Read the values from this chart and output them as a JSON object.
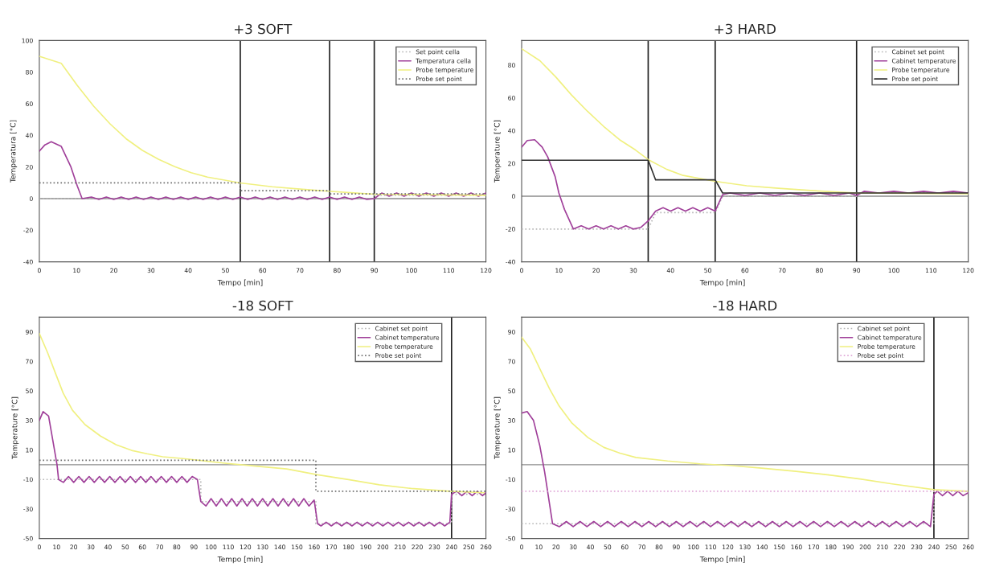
{
  "chart_data": [
    {
      "type": "line",
      "title": "+3 SOFT",
      "xlabel": "Tempo [min]",
      "ylabel": "Temperatura [°C]",
      "xlim": [
        0,
        120
      ],
      "xticks": [
        0,
        10,
        20,
        30,
        40,
        50,
        60,
        70,
        80,
        90,
        100,
        110,
        120
      ],
      "ylim": [
        -40,
        100
      ],
      "yticks": [
        -40,
        -20,
        0,
        20,
        40,
        60,
        80,
        100
      ],
      "grid": false,
      "legend": "top right",
      "series": [
        {
          "name": "Set point cella",
          "color": "#b8b8b8",
          "line_style": "dotted",
          "x": [
            0,
            90,
            90,
            120
          ],
          "values": [
            0,
            0,
            2,
            2
          ]
        },
        {
          "name": "Temperatura cella",
          "color": "#a0409a",
          "line_style": "solid",
          "x": [
            0,
            1.5,
            3.2,
            5.9,
            8.5,
            10.2,
            11.5,
            14,
            16,
            18,
            20,
            22,
            24,
            26,
            28,
            30,
            32,
            34,
            36,
            38,
            40,
            42,
            44,
            46,
            48,
            50,
            52,
            54,
            56,
            58,
            60,
            62,
            64,
            66,
            68,
            70,
            72,
            74,
            76,
            78,
            80,
            82,
            84,
            86,
            88,
            90,
            92,
            94,
            96,
            98,
            100,
            102,
            104,
            106,
            108,
            110,
            112,
            114,
            116,
            118,
            120
          ],
          "values": [
            30,
            34,
            36,
            33,
            20,
            8,
            0,
            1,
            -0.5,
            1,
            -0.5,
            1,
            -0.5,
            1,
            -0.5,
            1,
            -0.5,
            1,
            -0.5,
            1,
            -0.5,
            1,
            -0.5,
            1,
            -0.5,
            1,
            -0.5,
            1,
            -0.5,
            1,
            -0.5,
            1,
            -0.5,
            1,
            -0.5,
            1,
            -0.5,
            1,
            -0.5,
            1,
            -0.5,
            1,
            -0.5,
            1,
            -0.5,
            0,
            3.5,
            1.5,
            3.5,
            1.5,
            3.5,
            1.5,
            3.5,
            1.5,
            3.5,
            1.5,
            3.5,
            1.5,
            3.5,
            1.5,
            3.5
          ]
        },
        {
          "name": "Probe temperature",
          "color": "#f0f080",
          "line_style": "solid",
          "x": [
            0,
            5.9,
            10.2,
            14.6,
            19,
            23.3,
            27.7,
            32,
            36.4,
            40.8,
            45.2,
            49.5,
            54,
            62.6,
            71.4,
            77.6,
            84.5,
            90,
            120
          ],
          "values": [
            90,
            85.6,
            71.6,
            58.5,
            47.3,
            37.9,
            30.5,
            24.9,
            20.2,
            16.4,
            13.6,
            11.8,
            9.9,
            7.5,
            5.8,
            4.7,
            3.6,
            2.8,
            2.1
          ]
        },
        {
          "name": "Probe set point",
          "color": "#707070",
          "line_style": "dotted",
          "x": [
            0,
            54,
            54,
            78,
            78,
            120
          ],
          "values": [
            10,
            10,
            5,
            5,
            3,
            3
          ]
        }
      ],
      "ref_lines": [
        {
          "axis": "x",
          "value": 54,
          "color": "#202020"
        },
        {
          "axis": "x",
          "value": 78,
          "color": "#202020"
        },
        {
          "axis": "x",
          "value": 90,
          "color": "#202020"
        },
        {
          "axis": "y",
          "value": 0,
          "color": "#8c8c8c"
        }
      ]
    },
    {
      "type": "line",
      "title": "+3 HARD",
      "xlabel": "Tempo [min]",
      "ylabel": "Temperature [°C]",
      "xlim": [
        0,
        120
      ],
      "xticks": [
        0,
        10,
        20,
        30,
        40,
        50,
        60,
        70,
        80,
        90,
        100,
        110,
        120
      ],
      "ylim": [
        -40,
        95
      ],
      "yticks": [
        -40,
        -20,
        0,
        20,
        40,
        60,
        80
      ],
      "grid": false,
      "legend": "top right",
      "series": [
        {
          "name": "Cabinet set point",
          "color": "#b8b8b8",
          "line_style": "dotted",
          "x": [
            0,
            34,
            36,
            52,
            54,
            90,
            90,
            120
          ],
          "values": [
            -20,
            -20,
            -10,
            -10,
            0,
            0,
            2,
            2
          ]
        },
        {
          "name": "Cabinet temperature",
          "color": "#a0409a",
          "line_style": "solid",
          "x": [
            0,
            1.5,
            3.5,
            5.5,
            7,
            9,
            10,
            11.5,
            13.9,
            16,
            18,
            20,
            22,
            24,
            26,
            28,
            30,
            32,
            34,
            36,
            38,
            40,
            42,
            44,
            46,
            48,
            50,
            52,
            54,
            56,
            60,
            64,
            68,
            72,
            76,
            80,
            84,
            88,
            90,
            92,
            96,
            100,
            104,
            108,
            112,
            116,
            120
          ],
          "values": [
            30,
            34,
            34.5,
            30,
            24,
            12,
            2,
            -8,
            -20,
            -18,
            -20,
            -18,
            -20,
            -18,
            -20,
            -18,
            -20,
            -19,
            -15,
            -9,
            -7,
            -9,
            -7,
            -9,
            -7,
            -9,
            -7,
            -9,
            1,
            2,
            0.5,
            2,
            0.5,
            2,
            0.5,
            2,
            0.5,
            2,
            0.5,
            3,
            2,
            3,
            2,
            3,
            2,
            3,
            2
          ]
        },
        {
          "name": "Probe temperature",
          "color": "#f0f080",
          "line_style": "solid",
          "x": [
            0,
            4.9,
            9.2,
            13.4,
            17.7,
            22,
            26.3,
            30.6,
            34,
            39,
            43.4,
            52,
            60.5,
            69,
            77.7,
            90,
            120
          ],
          "values": [
            90,
            82.7,
            72.7,
            61.8,
            51.8,
            42.7,
            34.5,
            28.2,
            22.4,
            16.4,
            12.7,
            9.1,
            6.4,
            4.9,
            3.5,
            2,
            1.6
          ]
        },
        {
          "name": "Probe set point",
          "color": "#303030",
          "line_style": "solid",
          "x": [
            0,
            34,
            36,
            52,
            54,
            120
          ],
          "values": [
            22,
            22,
            10,
            10,
            2,
            2
          ]
        }
      ],
      "ref_lines": [
        {
          "axis": "x",
          "value": 34,
          "color": "#202020"
        },
        {
          "axis": "x",
          "value": 52,
          "color": "#202020"
        },
        {
          "axis": "x",
          "value": 90,
          "color": "#202020"
        },
        {
          "axis": "y",
          "value": 0,
          "color": "#8c8c8c"
        }
      ]
    },
    {
      "type": "line",
      "title": "-18 SOFT",
      "xlabel": "Tempo [min]",
      "ylabel": "Temperature [°C]",
      "xlim": [
        0,
        260
      ],
      "xticks": [
        0,
        10,
        20,
        30,
        40,
        50,
        60,
        70,
        80,
        90,
        100,
        110,
        120,
        130,
        140,
        150,
        160,
        170,
        180,
        190,
        200,
        210,
        220,
        230,
        240,
        250,
        260
      ],
      "ylim": [
        -50,
        100
      ],
      "yticks": [
        -50,
        -30,
        -10,
        10,
        30,
        50,
        70,
        90
      ],
      "grid": false,
      "legend": "top right",
      "series": [
        {
          "name": "Cabinet set point",
          "color": "#b8b8b8",
          "line_style": "dotted",
          "x": [
            0,
            94,
            94,
            161,
            161,
            240,
            240,
            260
          ],
          "values": [
            -10,
            -10,
            -25,
            -25,
            -40,
            -40,
            -20,
            -20
          ]
        },
        {
          "name": "Cabinet temperature",
          "color": "#a0409a",
          "line_style": "solid",
          "x": [
            0,
            2.2,
            5.4,
            8,
            10.3,
            11.2,
            14,
            17,
            20,
            23,
            26,
            29,
            32,
            35,
            38,
            41,
            44,
            47,
            50,
            53,
            56,
            59,
            62,
            65,
            68,
            71,
            74,
            77,
            80,
            83,
            86,
            89,
            92,
            94,
            97,
            100,
            103,
            106,
            109,
            112,
            115,
            118,
            121,
            124,
            127,
            130,
            133,
            136,
            139,
            142,
            145,
            148,
            151,
            154,
            157,
            160,
            162,
            164,
            167,
            170,
            173,
            176,
            179,
            182,
            185,
            188,
            191,
            194,
            197,
            200,
            203,
            206,
            209,
            212,
            215,
            218,
            221,
            224,
            227,
            230,
            233,
            236,
            239,
            240,
            243,
            246,
            249,
            252,
            255,
            258,
            260
          ],
          "values": [
            30,
            36,
            33,
            15.5,
            0,
            -10,
            -12,
            -8,
            -12,
            -8,
            -12,
            -8,
            -12,
            -8,
            -12,
            -8,
            -12,
            -8,
            -12,
            -8,
            -12,
            -8,
            -12,
            -8,
            -12,
            -8,
            -12,
            -8,
            -12,
            -8,
            -12,
            -8,
            -10,
            -25,
            -28,
            -23,
            -28,
            -23,
            -28,
            -23,
            -28,
            -23,
            -28,
            -23,
            -28,
            -23,
            -28,
            -23,
            -28,
            -23,
            -28,
            -23,
            -28,
            -23,
            -28,
            -24,
            -40,
            -41.5,
            -39,
            -41.5,
            -39,
            -41.5,
            -39,
            -41.5,
            -39,
            -41.5,
            -39,
            -41.5,
            -39,
            -41.5,
            -39,
            -41.5,
            -39,
            -41.5,
            -39,
            -41.5,
            -39,
            -41.5,
            -39,
            -41.5,
            -39,
            -41.5,
            -39,
            -20,
            -18,
            -21,
            -18,
            -21,
            -18,
            -21,
            -19
          ]
        },
        {
          "name": "Probe temperature",
          "color": "#f0f080",
          "line_style": "solid",
          "x": [
            0,
            4.9,
            9.4,
            13.9,
            19.3,
            26.6,
            35.6,
            44.7,
            53.7,
            62.7,
            71.8,
            82.6,
            93.5,
            108,
            126,
            144,
            162,
            180,
            198,
            216.5,
            239,
            259
          ],
          "values": [
            89,
            75.7,
            62,
            48.5,
            36.9,
            27.2,
            19.4,
            13.6,
            9.7,
            7.4,
            5.4,
            4.3,
            2.9,
            1,
            -1,
            -2.9,
            -6.8,
            -10.1,
            -13.6,
            -16.1,
            -18,
            -19
          ]
        },
        {
          "name": "Probe set point",
          "color": "#707070",
          "line_style": "dotted",
          "x": [
            0,
            161,
            161,
            260
          ],
          "values": [
            3,
            3,
            -18,
            -18
          ]
        }
      ],
      "ref_lines": [
        {
          "axis": "x",
          "value": 240,
          "color": "#202020"
        },
        {
          "axis": "y",
          "value": 0,
          "color": "#8c8c8c"
        }
      ]
    },
    {
      "type": "line",
      "title": "-18 HARD",
      "xlabel": "Tempo [min]",
      "ylabel": "Temperature [°C]",
      "xlim": [
        0,
        260
      ],
      "xticks": [
        0,
        10,
        20,
        30,
        40,
        50,
        60,
        70,
        80,
        90,
        100,
        110,
        120,
        130,
        140,
        150,
        160,
        170,
        180,
        190,
        200,
        210,
        220,
        230,
        240,
        250,
        260
      ],
      "ylim": [
        -50,
        100
      ],
      "yticks": [
        -50,
        -30,
        -10,
        10,
        30,
        50,
        70,
        90
      ],
      "grid": false,
      "legend": "top right",
      "series": [
        {
          "name": "Cabinet set point",
          "color": "#b8b8b8",
          "line_style": "dotted",
          "x": [
            0,
            240,
            240,
            260
          ],
          "values": [
            -40,
            -40,
            -18,
            -18
          ]
        },
        {
          "name": "Cabinet temperature",
          "color": "#a0409a",
          "line_style": "solid",
          "x": [
            0,
            3.2,
            6.9,
            10.6,
            13.4,
            18,
            22,
            26,
            30,
            34,
            38,
            42,
            46,
            50,
            54,
            58,
            62,
            66,
            70,
            74,
            78,
            82,
            86,
            90,
            94,
            98,
            102,
            106,
            110,
            114,
            118,
            122,
            126,
            130,
            134,
            138,
            142,
            146,
            150,
            154,
            158,
            162,
            166,
            170,
            174,
            178,
            182,
            186,
            190,
            194,
            198,
            202,
            206,
            210,
            214,
            218,
            222,
            226,
            230,
            234,
            238,
            240,
            242,
            245,
            248,
            251,
            254,
            257,
            260
          ],
          "values": [
            35,
            36,
            30,
            12.7,
            -5,
            -40,
            -42,
            -38.5,
            -42,
            -38.5,
            -42,
            -38.5,
            -42,
            -38.5,
            -42,
            -38.5,
            -42,
            -38.5,
            -42,
            -38.5,
            -42,
            -38.5,
            -42,
            -38.5,
            -42,
            -38.5,
            -42,
            -38.5,
            -42,
            -38.5,
            -42,
            -38.5,
            -42,
            -38.5,
            -42,
            -38.5,
            -42,
            -38.5,
            -42,
            -38.5,
            -42,
            -38.5,
            -42,
            -38.5,
            -42,
            -38.5,
            -42,
            -38.5,
            -42,
            -38.5,
            -42,
            -38.5,
            -42,
            -38.5,
            -42,
            -38.5,
            -42,
            -38.5,
            -42,
            -38.5,
            -42,
            -20,
            -18,
            -21,
            -18,
            -21,
            -18,
            -21,
            -19
          ]
        },
        {
          "name": "Probe temperature",
          "color": "#f0f080",
          "line_style": "solid",
          "x": [
            0,
            5,
            10.6,
            16.2,
            21.8,
            29.3,
            38.6,
            47.9,
            57.2,
            66.5,
            85,
            103.8,
            122.5,
            141,
            159.7,
            178,
            197,
            215.7,
            240,
            259.5
          ],
          "values": [
            86.4,
            78.6,
            65,
            51.5,
            39.8,
            28.2,
            18.4,
            11.7,
            7.8,
            4.9,
            2.5,
            0.6,
            -0.6,
            -2.5,
            -4.5,
            -6.8,
            -9.7,
            -13,
            -16.9,
            -18
          ]
        },
        {
          "name": "Probe set point",
          "color": "#e0a8d8",
          "line_style": "dotted",
          "x": [
            0,
            260
          ],
          "values": [
            -18,
            -18
          ]
        }
      ],
      "ref_lines": [
        {
          "axis": "x",
          "value": 240,
          "color": "#202020"
        },
        {
          "axis": "y",
          "value": 0,
          "color": "#8c8c8c"
        }
      ]
    }
  ]
}
